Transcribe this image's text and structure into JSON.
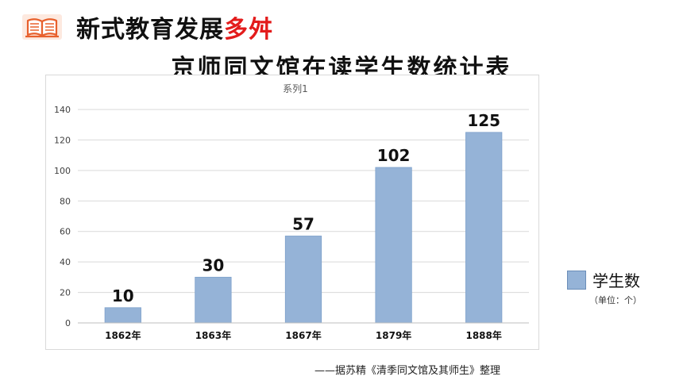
{
  "header": {
    "title_main": "新式教育发展",
    "title_accent": "多舛"
  },
  "table_title": "京师同文馆在读学生数统计表",
  "chart_data": {
    "type": "bar",
    "title": "系列1",
    "categories": [
      "1862年",
      "1863年",
      "1867年",
      "1879年",
      "1888年"
    ],
    "values": [
      10,
      30,
      57,
      102,
      125
    ],
    "series": [
      {
        "name": "学生数",
        "values": [
          10,
          30,
          57,
          102,
          125
        ]
      }
    ],
    "ylim": [
      0,
      140
    ],
    "yticks": [
      0,
      20,
      40,
      60,
      80,
      100,
      120,
      140
    ],
    "grid": true,
    "legend_position": "right",
    "legend_note": "（单位：个）",
    "colors": {
      "bar": "#95b3d7",
      "bar_border": "#7ea1cb",
      "grid": "#d9d9d9"
    }
  },
  "source_note": "——据苏精《清季同文馆及其师生》整理"
}
